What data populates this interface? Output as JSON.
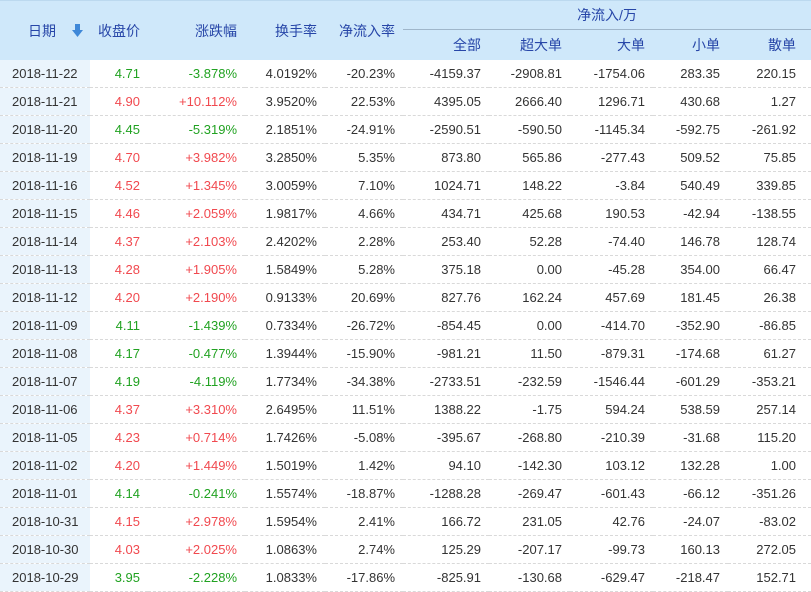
{
  "colors": {
    "header_bg": "#cfe8fa",
    "header_text": "#2746a8",
    "date_col_bg": "#eaf4fc",
    "body_text": "#333333",
    "up_red": "#f1494f",
    "down_green": "#21a221",
    "divider": "#d9d9d9",
    "sort_arrow": "#3f88d8",
    "group_line": "#9fb6ca"
  },
  "table": {
    "headers": {
      "date": "日期",
      "close": "收盘价",
      "change": "涨跌幅",
      "turnover": "换手率",
      "inflow_rate": "净流入率",
      "group": "净流入/万",
      "all": "全部",
      "super_large": "超大单",
      "large": "大单",
      "small": "小单",
      "retail": "散单"
    },
    "sort": {
      "column": "日期",
      "direction": "desc"
    },
    "rows": [
      {
        "date": "2018-11-22",
        "close": "4.71",
        "change": "-3.878%",
        "trend": "down",
        "turnover": "4.0192%",
        "inflow_rate": "-20.23%",
        "all": "-4159.37",
        "super_large": "-2908.81",
        "large": "-1754.06",
        "small": "283.35",
        "retail": "220.15"
      },
      {
        "date": "2018-11-21",
        "close": "4.90",
        "change": "+10.112%",
        "trend": "up",
        "turnover": "3.9520%",
        "inflow_rate": "22.53%",
        "all": "4395.05",
        "super_large": "2666.40",
        "large": "1296.71",
        "small": "430.68",
        "retail": "1.27"
      },
      {
        "date": "2018-11-20",
        "close": "4.45",
        "change": "-5.319%",
        "trend": "down",
        "turnover": "2.1851%",
        "inflow_rate": "-24.91%",
        "all": "-2590.51",
        "super_large": "-590.50",
        "large": "-1145.34",
        "small": "-592.75",
        "retail": "-261.92"
      },
      {
        "date": "2018-11-19",
        "close": "4.70",
        "change": "+3.982%",
        "trend": "up",
        "turnover": "3.2850%",
        "inflow_rate": "5.35%",
        "all": "873.80",
        "super_large": "565.86",
        "large": "-277.43",
        "small": "509.52",
        "retail": "75.85"
      },
      {
        "date": "2018-11-16",
        "close": "4.52",
        "change": "+1.345%",
        "trend": "up",
        "turnover": "3.0059%",
        "inflow_rate": "7.10%",
        "all": "1024.71",
        "super_large": "148.22",
        "large": "-3.84",
        "small": "540.49",
        "retail": "339.85"
      },
      {
        "date": "2018-11-15",
        "close": "4.46",
        "change": "+2.059%",
        "trend": "up",
        "turnover": "1.9817%",
        "inflow_rate": "4.66%",
        "all": "434.71",
        "super_large": "425.68",
        "large": "190.53",
        "small": "-42.94",
        "retail": "-138.55"
      },
      {
        "date": "2018-11-14",
        "close": "4.37",
        "change": "+2.103%",
        "trend": "up",
        "turnover": "2.4202%",
        "inflow_rate": "2.28%",
        "all": "253.40",
        "super_large": "52.28",
        "large": "-74.40",
        "small": "146.78",
        "retail": "128.74"
      },
      {
        "date": "2018-11-13",
        "close": "4.28",
        "change": "+1.905%",
        "trend": "up",
        "turnover": "1.5849%",
        "inflow_rate": "5.28%",
        "all": "375.18",
        "super_large": "0.00",
        "large": "-45.28",
        "small": "354.00",
        "retail": "66.47"
      },
      {
        "date": "2018-11-12",
        "close": "4.20",
        "change": "+2.190%",
        "trend": "up",
        "turnover": "0.9133%",
        "inflow_rate": "20.69%",
        "all": "827.76",
        "super_large": "162.24",
        "large": "457.69",
        "small": "181.45",
        "retail": "26.38"
      },
      {
        "date": "2018-11-09",
        "close": "4.11",
        "change": "-1.439%",
        "trend": "down",
        "turnover": "0.7334%",
        "inflow_rate": "-26.72%",
        "all": "-854.45",
        "super_large": "0.00",
        "large": "-414.70",
        "small": "-352.90",
        "retail": "-86.85"
      },
      {
        "date": "2018-11-08",
        "close": "4.17",
        "change": "-0.477%",
        "trend": "down",
        "turnover": "1.3944%",
        "inflow_rate": "-15.90%",
        "all": "-981.21",
        "super_large": "11.50",
        "large": "-879.31",
        "small": "-174.68",
        "retail": "61.27"
      },
      {
        "date": "2018-11-07",
        "close": "4.19",
        "change": "-4.119%",
        "trend": "down",
        "turnover": "1.7734%",
        "inflow_rate": "-34.38%",
        "all": "-2733.51",
        "super_large": "-232.59",
        "large": "-1546.44",
        "small": "-601.29",
        "retail": "-353.21"
      },
      {
        "date": "2018-11-06",
        "close": "4.37",
        "change": "+3.310%",
        "trend": "up",
        "turnover": "2.6495%",
        "inflow_rate": "11.51%",
        "all": "1388.22",
        "super_large": "-1.75",
        "large": "594.24",
        "small": "538.59",
        "retail": "257.14"
      },
      {
        "date": "2018-11-05",
        "close": "4.23",
        "change": "+0.714%",
        "trend": "up",
        "turnover": "1.7426%",
        "inflow_rate": "-5.08%",
        "all": "-395.67",
        "super_large": "-268.80",
        "large": "-210.39",
        "small": "-31.68",
        "retail": "115.20"
      },
      {
        "date": "2018-11-02",
        "close": "4.20",
        "change": "+1.449%",
        "trend": "up",
        "turnover": "1.5019%",
        "inflow_rate": "1.42%",
        "all": "94.10",
        "super_large": "-142.30",
        "large": "103.12",
        "small": "132.28",
        "retail": "1.00"
      },
      {
        "date": "2018-11-01",
        "close": "4.14",
        "change": "-0.241%",
        "trend": "down",
        "turnover": "1.5574%",
        "inflow_rate": "-18.87%",
        "all": "-1288.28",
        "super_large": "-269.47",
        "large": "-601.43",
        "small": "-66.12",
        "retail": "-351.26"
      },
      {
        "date": "2018-10-31",
        "close": "4.15",
        "change": "+2.978%",
        "trend": "up",
        "turnover": "1.5954%",
        "inflow_rate": "2.41%",
        "all": "166.72",
        "super_large": "231.05",
        "large": "42.76",
        "small": "-24.07",
        "retail": "-83.02"
      },
      {
        "date": "2018-10-30",
        "close": "4.03",
        "change": "+2.025%",
        "trend": "up",
        "turnover": "1.0863%",
        "inflow_rate": "2.74%",
        "all": "125.29",
        "super_large": "-207.17",
        "large": "-99.73",
        "small": "160.13",
        "retail": "272.05"
      },
      {
        "date": "2018-10-29",
        "close": "3.95",
        "change": "-2.228%",
        "trend": "down",
        "turnover": "1.0833%",
        "inflow_rate": "-17.86%",
        "all": "-825.91",
        "super_large": "-130.68",
        "large": "-629.47",
        "small": "-218.47",
        "retail": "152.71"
      }
    ]
  }
}
